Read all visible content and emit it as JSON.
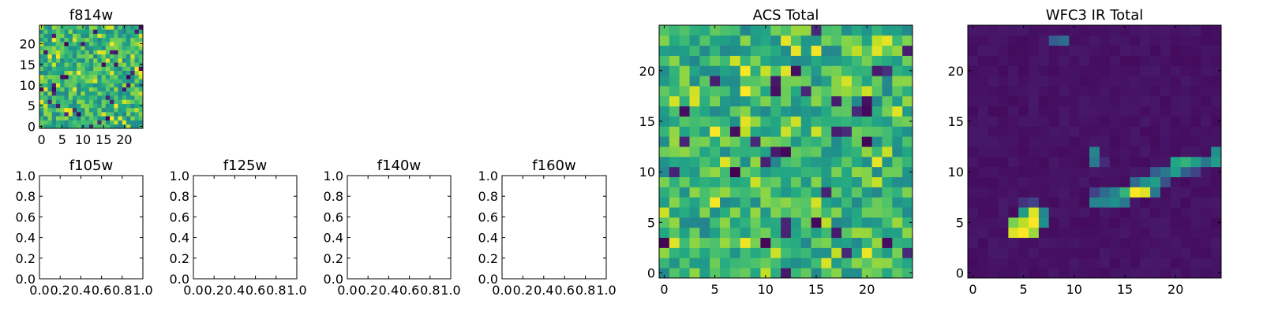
{
  "chart_data": [
    {
      "type": "heatmap",
      "title": "f814w",
      "xticks": [
        "0",
        "5",
        "10",
        "15",
        "20"
      ],
      "yticks": [
        "0",
        "5",
        "10",
        "15",
        "20"
      ],
      "xlim": [
        -0.5,
        24.5
      ],
      "ylim": [
        -0.5,
        24.5
      ],
      "grid": false,
      "colormap": "viridis",
      "matrix_size": [
        25,
        25
      ],
      "values_description_free": true
    },
    {
      "type": "heatmap",
      "title": "f105w",
      "xticks": [
        "0.0",
        "0.2",
        "0.4",
        "0.6",
        "0.8",
        "1.0"
      ],
      "yticks": [
        "0.0",
        "0.2",
        "0.4",
        "0.6",
        "0.8",
        "1.0"
      ],
      "xlim": [
        0,
        1
      ],
      "ylim": [
        0,
        1
      ],
      "grid": false
    },
    {
      "type": "heatmap",
      "title": "f125w",
      "xticks": [
        "0.0",
        "0.2",
        "0.4",
        "0.6",
        "0.8",
        "1.0"
      ],
      "yticks": [
        "0.0",
        "0.2",
        "0.4",
        "0.6",
        "0.8",
        "1.0"
      ],
      "xlim": [
        0,
        1
      ],
      "ylim": [
        0,
        1
      ],
      "grid": false
    },
    {
      "type": "heatmap",
      "title": "f140w",
      "xticks": [
        "0.0",
        "0.2",
        "0.4",
        "0.6",
        "0.8",
        "1.0"
      ],
      "yticks": [
        "0.0",
        "0.2",
        "0.4",
        "0.6",
        "0.8",
        "1.0"
      ],
      "xlim": [
        0,
        1
      ],
      "ylim": [
        0,
        1
      ],
      "grid": false
    },
    {
      "type": "heatmap",
      "title": "f160w",
      "xticks": [
        "0.0",
        "0.2",
        "0.4",
        "0.6",
        "0.8",
        "1.0"
      ],
      "yticks": [
        "0.0",
        "0.2",
        "0.4",
        "0.6",
        "0.8",
        "1.0"
      ],
      "xlim": [
        0,
        1
      ],
      "ylim": [
        0,
        1
      ],
      "grid": false
    },
    {
      "type": "heatmap",
      "title": "ACS Total",
      "xticks": [
        "0",
        "5",
        "10",
        "15",
        "20"
      ],
      "yticks": [
        "0",
        "5",
        "10",
        "15",
        "20"
      ],
      "xlim": [
        -0.5,
        24.5
      ],
      "ylim": [
        -0.5,
        24.5
      ],
      "grid": false,
      "colormap": "viridis",
      "matrix_size": [
        25,
        25
      ]
    },
    {
      "type": "heatmap",
      "title": "WFC3 IR Total",
      "xticks": [
        "0",
        "5",
        "10",
        "15",
        "20"
      ],
      "yticks": [
        "0",
        "5",
        "10",
        "15",
        "20"
      ],
      "xlim": [
        -0.5,
        24.5
      ],
      "ylim": [
        -0.5,
        24.5
      ],
      "grid": false,
      "colormap": "viridis",
      "matrix_size": [
        25,
        25
      ],
      "background_level": 0.03,
      "bright_pixels": [
        {
          "x": 8,
          "y": 23,
          "v": 0.3
        },
        {
          "x": 9,
          "y": 23,
          "v": 0.35
        },
        {
          "x": 12,
          "y": 12,
          "v": 0.45
        },
        {
          "x": 12,
          "y": 11,
          "v": 0.4
        },
        {
          "x": 13,
          "y": 11,
          "v": 0.12
        },
        {
          "x": 4,
          "y": 4,
          "v": 0.95
        },
        {
          "x": 5,
          "y": 4,
          "v": 1.0
        },
        {
          "x": 6,
          "y": 4,
          "v": 0.85
        },
        {
          "x": 4,
          "y": 5,
          "v": 0.8
        },
        {
          "x": 5,
          "y": 5,
          "v": 0.9
        },
        {
          "x": 6,
          "y": 5,
          "v": 1.0
        },
        {
          "x": 7,
          "y": 5,
          "v": 0.5
        },
        {
          "x": 5,
          "y": 6,
          "v": 0.55
        },
        {
          "x": 6,
          "y": 6,
          "v": 0.95
        },
        {
          "x": 7,
          "y": 6,
          "v": 0.45
        },
        {
          "x": 5,
          "y": 7,
          "v": 0.15
        },
        {
          "x": 6,
          "y": 7,
          "v": 0.2
        },
        {
          "x": 12,
          "y": 7,
          "v": 0.45
        },
        {
          "x": 13,
          "y": 7,
          "v": 0.45
        },
        {
          "x": 14,
          "y": 7,
          "v": 0.5
        },
        {
          "x": 15,
          "y": 7,
          "v": 0.4
        },
        {
          "x": 12,
          "y": 8,
          "v": 0.2
        },
        {
          "x": 13,
          "y": 8,
          "v": 0.35
        },
        {
          "x": 14,
          "y": 8,
          "v": 0.45
        },
        {
          "x": 15,
          "y": 8,
          "v": 0.65
        },
        {
          "x": 16,
          "y": 8,
          "v": 1.0
        },
        {
          "x": 17,
          "y": 8,
          "v": 0.95
        },
        {
          "x": 18,
          "y": 8,
          "v": 0.4
        },
        {
          "x": 16,
          "y": 9,
          "v": 0.35
        },
        {
          "x": 17,
          "y": 9,
          "v": 0.5
        },
        {
          "x": 18,
          "y": 9,
          "v": 0.55
        },
        {
          "x": 19,
          "y": 9,
          "v": 0.25
        },
        {
          "x": 18,
          "y": 10,
          "v": 0.3
        },
        {
          "x": 19,
          "y": 10,
          "v": 0.4
        },
        {
          "x": 20,
          "y": 10,
          "v": 0.55
        },
        {
          "x": 21,
          "y": 10,
          "v": 0.3
        },
        {
          "x": 20,
          "y": 11,
          "v": 0.6
        },
        {
          "x": 21,
          "y": 11,
          "v": 0.65
        },
        {
          "x": 22,
          "y": 11,
          "v": 0.55
        },
        {
          "x": 23,
          "y": 11,
          "v": 0.4
        },
        {
          "x": 24,
          "y": 11,
          "v": 0.55
        },
        {
          "x": 24,
          "y": 12,
          "v": 0.5
        },
        {
          "x": 22,
          "y": 10,
          "v": 0.2
        }
      ]
    }
  ]
}
